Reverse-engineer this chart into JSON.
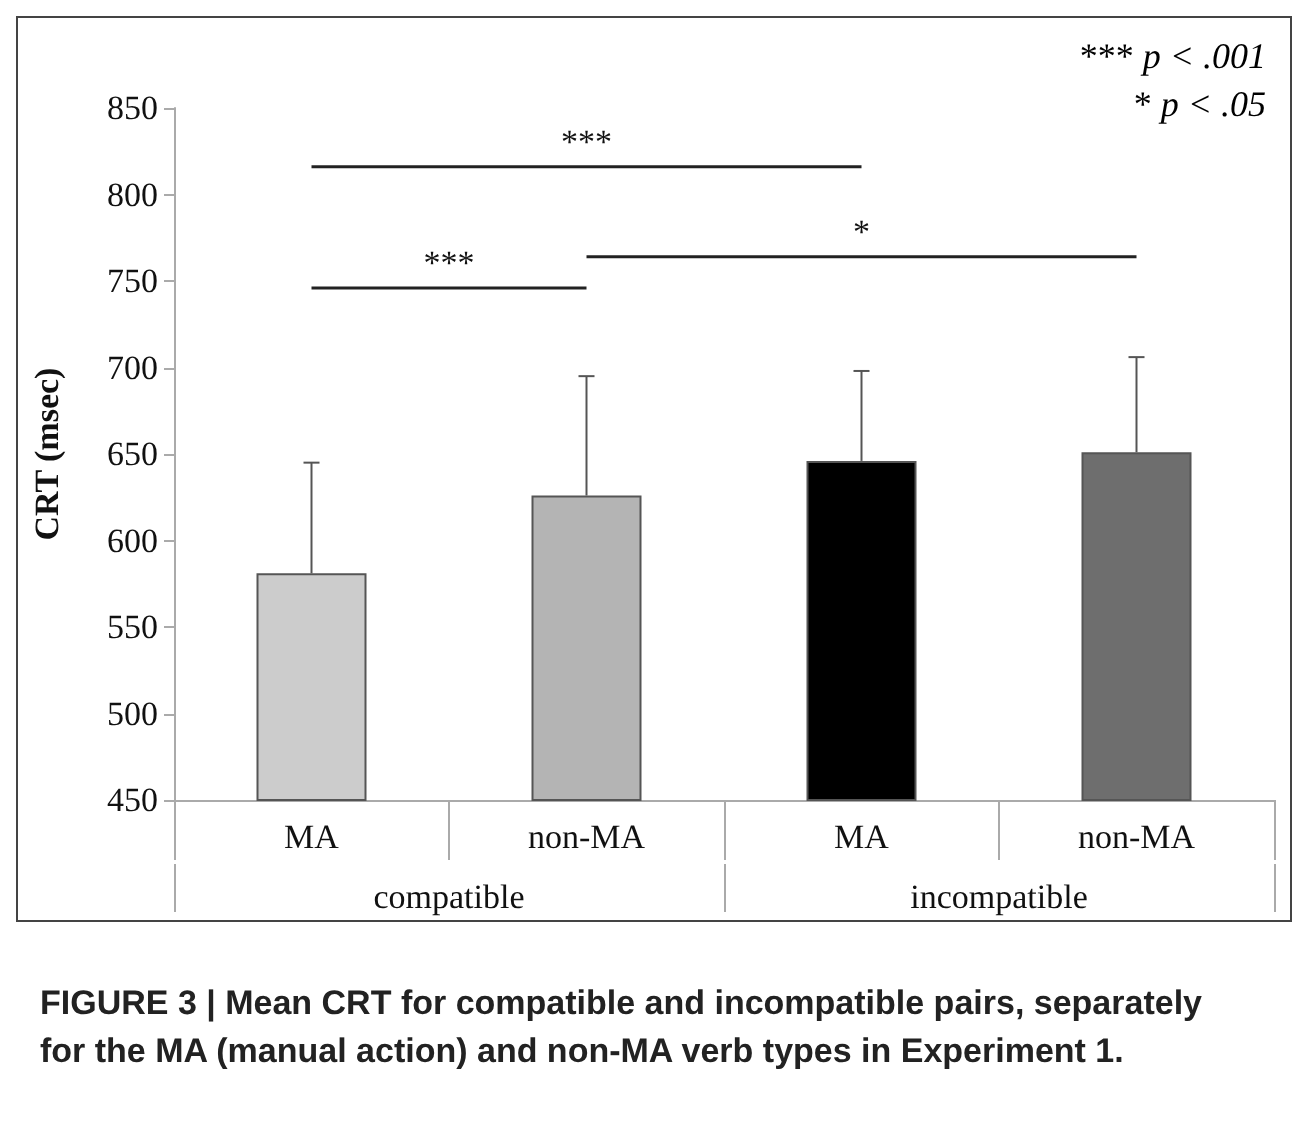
{
  "chart_data": {
    "type": "bar",
    "categories": [
      "MA",
      "non-MA",
      "MA",
      "non-MA"
    ],
    "values": [
      581,
      626,
      646,
      651
    ],
    "colors": [
      "#cccccc",
      "#b4b4b4",
      "#000000",
      "#6e6e6e"
    ],
    "errors": [
      [
        581,
        645
      ],
      [
        626,
        695
      ],
      [
        646,
        698
      ],
      [
        651,
        706
      ]
    ],
    "ylabel": "CRT (msec)",
    "ylim": [
      450,
      850
    ],
    "yticks": [
      450,
      500,
      550,
      600,
      650,
      700,
      750,
      800,
      850
    ],
    "grid": false,
    "annotations": [
      "compatible",
      "incompatible",
      "***",
      "***",
      "*",
      "*** p < .001",
      "* p < .05",
      "FIGURE 3 | Mean CRT for compatible and incompatible pairs, separately for the MA (manual action) and non-MA verb types in Experiment 1."
    ]
  }
}
